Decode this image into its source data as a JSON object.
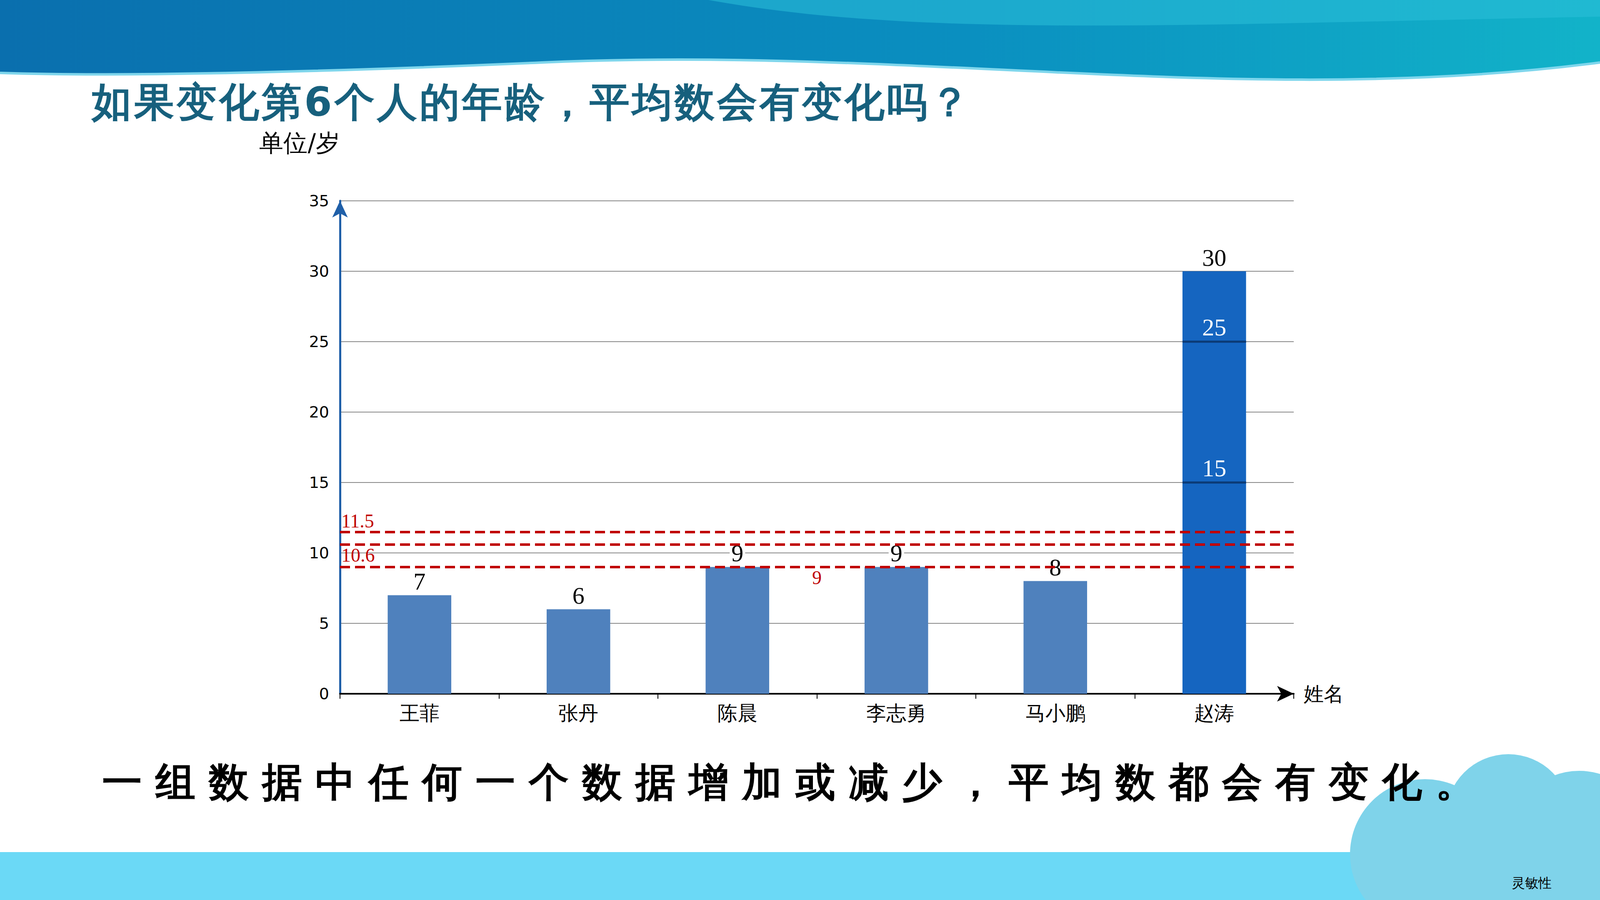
{
  "chart_data": {
    "type": "bar",
    "title": "如果变化第6个人的年龄，平均数会有变化吗？",
    "y_label": "单位/岁",
    "x_label": "姓名",
    "categories": [
      "王菲",
      "张丹",
      "陈晨",
      "李志勇",
      "马小鹏",
      "赵涛"
    ],
    "values": [
      7,
      6,
      9,
      9,
      8,
      30
    ],
    "colors": [
      "#4f81bd",
      "#4f81bd",
      "#4f81bd",
      "#4f81bd",
      "#4f81bd",
      "#1565c0"
    ],
    "segments": {
      "category": "赵涛",
      "values": [
        15,
        25
      ]
    },
    "reference_lines": [
      {
        "value": 11.5,
        "label": "11.5"
      },
      {
        "value": 10.6,
        "label": "10.6"
      },
      {
        "value": 9,
        "label": "9"
      }
    ],
    "ylim": [
      0,
      35
    ],
    "yticks": [
      0,
      5,
      10,
      15,
      20,
      25,
      30,
      35
    ],
    "grid": true,
    "data_labels": true
  },
  "slide": {
    "conclusion": "一组数据中任何一个数据增加或减少，平均数都会有变化。",
    "tag": "灵敏性"
  }
}
